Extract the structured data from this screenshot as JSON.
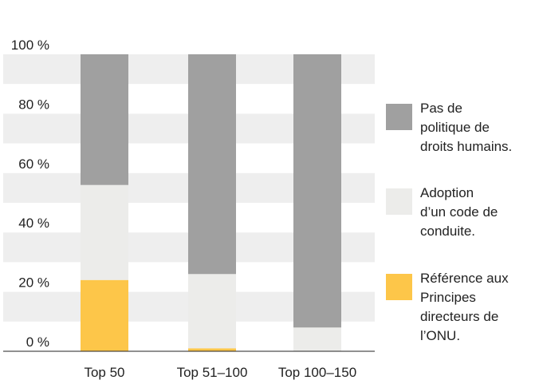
{
  "chart_data": {
    "type": "bar",
    "stacked": true,
    "categories": [
      "Top 50",
      "Top 51–100",
      "Top 100–150"
    ],
    "series": [
      {
        "name": "Référence aux Principes directeurs de l’ONU.",
        "color": "#fdc649",
        "values": [
          24,
          1,
          0
        ]
      },
      {
        "name": "Adoption d’un code de conduite.",
        "color": "#ececea",
        "values": [
          32,
          25,
          8
        ]
      },
      {
        "name": "Pas de politique de droits humains.",
        "color": "#a0a0a0",
        "values": [
          44,
          74,
          92
        ]
      }
    ],
    "y_ticks": [
      "0 %",
      "20 %",
      "40 %",
      "60 %",
      "80 %",
      "100 %"
    ],
    "ylim": [
      0,
      100
    ],
    "legend_position": "right",
    "grid": "alternating horizontal bands"
  },
  "legend": [
    {
      "label_lines": [
        "Pas de",
        "politique de",
        "droits humains."
      ],
      "color": "#a0a0a0"
    },
    {
      "label_lines": [
        "Adoption",
        "d’un code de",
        "conduite."
      ],
      "color": "#ececea"
    },
    {
      "label_lines": [
        "Référence aux",
        "Principes",
        "directeurs de",
        "l’ONU."
      ],
      "color": "#fdc649"
    }
  ]
}
